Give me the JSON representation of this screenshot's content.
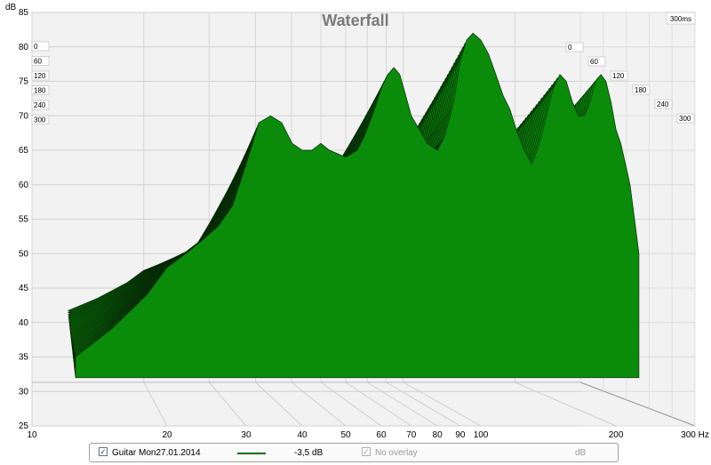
{
  "chart_data": {
    "type": "area",
    "title": "Waterfall",
    "ylabel": "dB",
    "xlabel_unit": "Hz",
    "time_unit_label": "300ms",
    "x_scale": "log",
    "xlim": [
      10,
      300
    ],
    "ylim": [
      25,
      85
    ],
    "x_ticks": [
      "10",
      "20",
      "30",
      "40",
      "50",
      "60",
      "70",
      "80",
      "90",
      "100",
      "200",
      "300 Hz"
    ],
    "x_tick_values": [
      10,
      20,
      30,
      40,
      50,
      60,
      70,
      80,
      90,
      100,
      200,
      300
    ],
    "y_ticks": [
      "85",
      "80",
      "75",
      "70",
      "65",
      "60",
      "55",
      "50",
      "45",
      "40",
      "35",
      "30",
      "25"
    ],
    "y_tick_values": [
      85,
      80,
      75,
      70,
      65,
      60,
      55,
      50,
      45,
      40,
      35,
      30,
      25
    ],
    "time_ticks_ms": [
      "0",
      "60",
      "120",
      "180",
      "240",
      "300"
    ],
    "series": [
      {
        "name": "Guitar Mon27.01.2014",
        "color": "#0b6e0b",
        "x": [
          12.5,
          15,
          18,
          20,
          22,
          24,
          25,
          26,
          28,
          30,
          31,
          32,
          34,
          36,
          38,
          40,
          42,
          44,
          46,
          50,
          53,
          55,
          58,
          60,
          62,
          64,
          66,
          68,
          70,
          73,
          76,
          80,
          83,
          87,
          90,
          93,
          96,
          100,
          104,
          108,
          112,
          116,
          120,
          125,
          130,
          135,
          140,
          145,
          150,
          155,
          160,
          165,
          170,
          175,
          180,
          185,
          190,
          195,
          200,
          205,
          210,
          215,
          220,
          225
        ],
        "values_front_slice": [
          35,
          39,
          44,
          48,
          50,
          52,
          53,
          54,
          57,
          63,
          66,
          69,
          70,
          69,
          66,
          65,
          65,
          66,
          65,
          64,
          65,
          67,
          71,
          74,
          76,
          77,
          76,
          73,
          70,
          68,
          66,
          65,
          67,
          72,
          78,
          81,
          82,
          81,
          79,
          76,
          73,
          71,
          68,
          65,
          63,
          66,
          70,
          74,
          76,
          75,
          72,
          70,
          70,
          72,
          75,
          76,
          75,
          72,
          68,
          66,
          63,
          60,
          55,
          50
        ]
      }
    ]
  },
  "legend": {
    "series_name": "Guitar Mon27.01.2014",
    "series_checked": true,
    "offset": "-3,5 dB",
    "overlay_label": "No overlay",
    "overlay_checked": true,
    "overlay_unit": "dB"
  }
}
